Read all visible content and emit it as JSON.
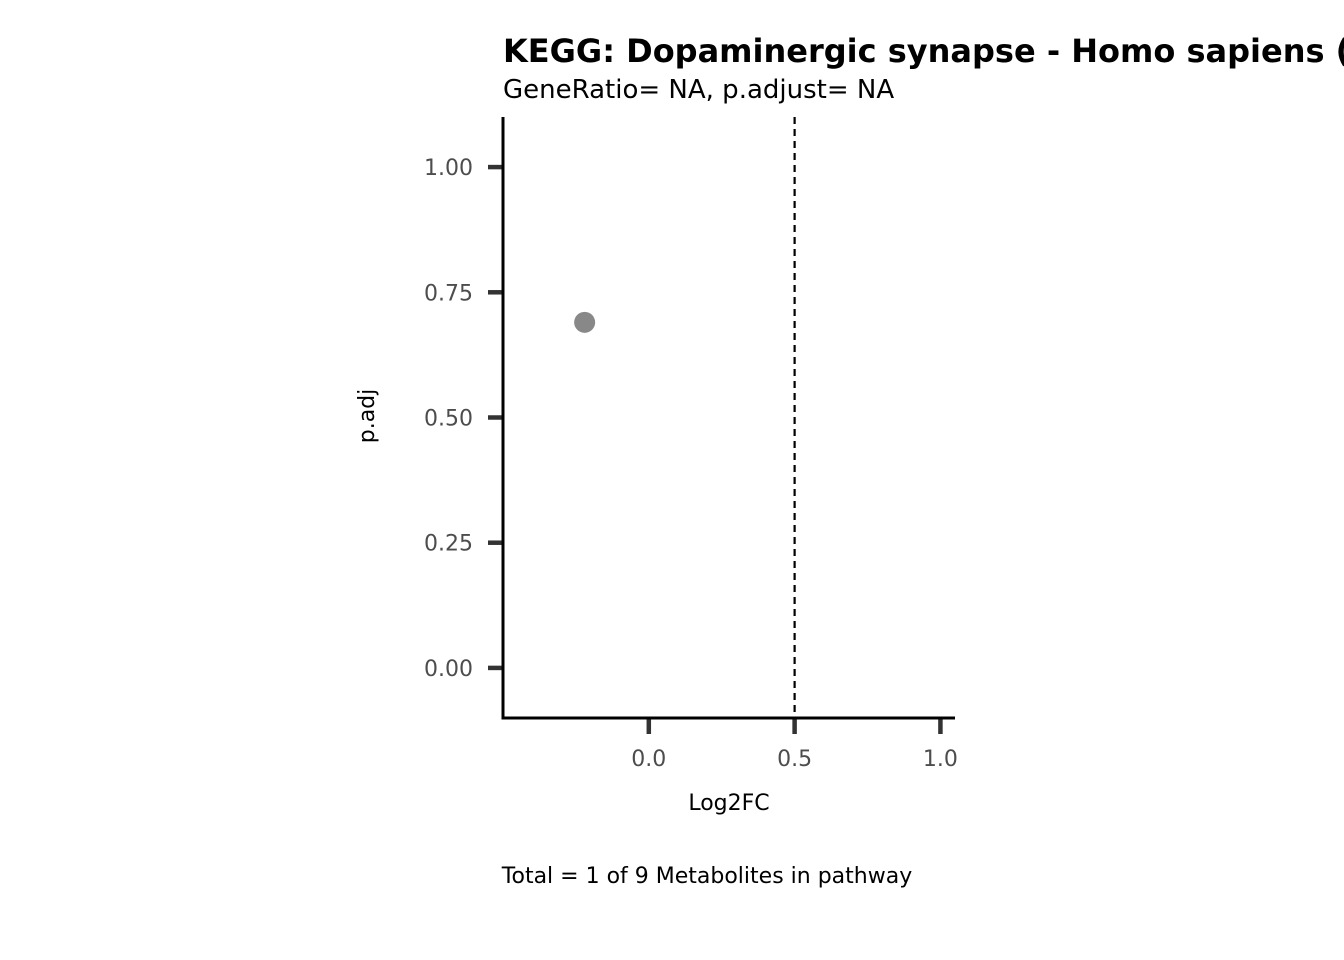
{
  "chart_data": {
    "type": "scatter",
    "title": "KEGG: Dopaminergic synapse - Homo sapiens (",
    "subtitle": "GeneRatio= NA, p.adjust= NA",
    "xlabel": "Log2FC",
    "ylabel": "p.adj",
    "caption": "Total = 1 of 9 Metabolites in pathway",
    "xlim": [
      -0.5,
      1.05
    ],
    "ylim": [
      -0.1,
      1.1
    ],
    "x_ticks": [
      0.0,
      0.5,
      1.0
    ],
    "x_tick_labels": [
      "0.0",
      "0.5",
      "1.0"
    ],
    "y_ticks": [
      0.0,
      0.25,
      0.5,
      0.75,
      1.0
    ],
    "y_tick_labels": [
      "0.00",
      "0.25",
      "0.50",
      "0.75",
      "1.00"
    ],
    "vline_x": 0.5,
    "points": [
      {
        "x": -0.22,
        "y": 0.69
      }
    ],
    "point_color": "#888888",
    "grid": false
  }
}
